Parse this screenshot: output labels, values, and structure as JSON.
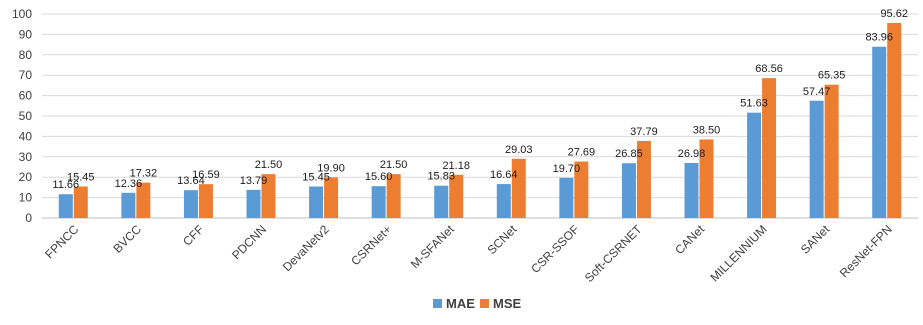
{
  "chart_data": {
    "type": "bar",
    "title": "",
    "xlabel": "",
    "ylabel": "",
    "ylim": [
      0,
      100
    ],
    "yticks": [
      0,
      10,
      20,
      30,
      40,
      50,
      60,
      70,
      80,
      90,
      100
    ],
    "grid": true,
    "legend_position": "bottom",
    "categories": [
      "FPNCC",
      "BVCC",
      "CFF",
      "PDCNN",
      "DevaNetv2",
      "CSRNet+",
      "M-SFANet",
      "SCNet",
      "CSR-SSOF",
      "Soft-CSRNET",
      "CANet",
      "MILLENNIUM",
      "SANet",
      "ResNet-FPN"
    ],
    "series": [
      {
        "name": "MAE",
        "color": "#5B9BD5",
        "values": [
          11.66,
          12.36,
          13.64,
          13.79,
          15.45,
          15.6,
          15.83,
          16.64,
          19.7,
          26.85,
          26.98,
          51.63,
          57.47,
          83.96
        ],
        "labels": [
          "11.66",
          "12.36",
          "13.64",
          "13.79",
          "15.45",
          "15.60",
          "15.83",
          "16.64",
          "19.70",
          "26.85",
          "26.98",
          "51.63",
          "57.47",
          "83.96"
        ]
      },
      {
        "name": "MSE",
        "color": "#ED7D31",
        "values": [
          15.45,
          17.32,
          16.59,
          21.5,
          19.9,
          21.5,
          21.18,
          29.03,
          27.69,
          37.79,
          38.5,
          68.56,
          65.35,
          95.62
        ],
        "labels": [
          "15.45",
          "17.32",
          "16.59",
          "21.50",
          "19.90",
          "21.50",
          "21.18",
          "29.03",
          "27.69",
          "37.79",
          "38.50",
          "68.56",
          "65.35",
          "95.62"
        ]
      }
    ]
  }
}
